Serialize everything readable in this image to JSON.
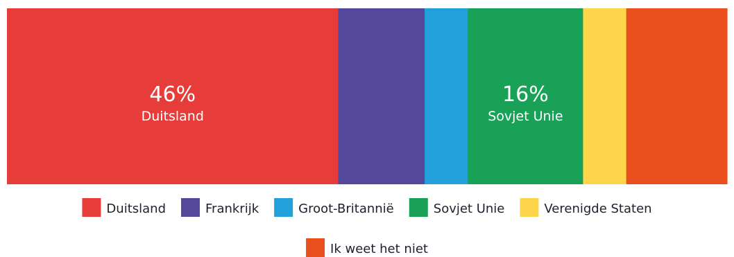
{
  "chart_data": {
    "type": "bar",
    "subtype": "stacked-100-horizontal",
    "categories": [
      "Duitsland",
      "Frankrijk",
      "Groot-Britannië",
      "Sovjet Unie",
      "Verenigde Staten",
      "Ik weet het niet"
    ],
    "values": [
      46,
      12,
      6,
      16,
      6,
      14
    ],
    "unit": "%",
    "colors": [
      "#e63c3a",
      "#554799",
      "#21a0da",
      "#18a157",
      "#fdd64c",
      "#e9501e"
    ],
    "data_labels": [
      {
        "index": 0,
        "pct": "46%",
        "name": "Duitsland"
      },
      {
        "index": 3,
        "pct": "16%",
        "name": "Sovjet Unie"
      }
    ],
    "legend": {
      "placement": "bottom",
      "rows": [
        [
          0,
          1,
          2,
          3,
          4
        ],
        [
          5
        ]
      ]
    },
    "grid": false,
    "title": "",
    "xlabel": "",
    "ylabel": ""
  }
}
